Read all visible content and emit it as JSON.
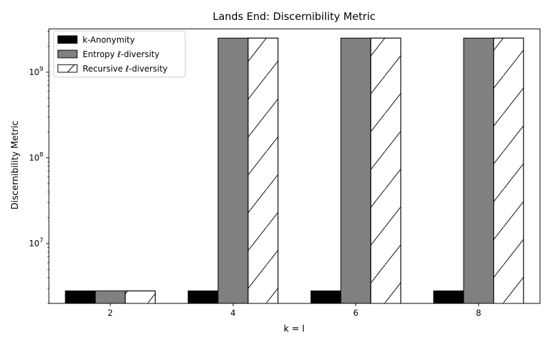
{
  "chart_data": {
    "type": "bar",
    "title": "Lands End: Discernibility Metric",
    "xlabel": "k = l",
    "ylabel": "Discernibility Metric",
    "yscale": "log",
    "ylim": [
      2000000,
      3200000000
    ],
    "categories": [
      "2",
      "4",
      "6",
      "8"
    ],
    "y_major_ticks": [
      {
        "value": 10000000,
        "label_base": "10",
        "label_exp": "7"
      },
      {
        "value": 100000000,
        "label_base": "10",
        "label_exp": "8"
      },
      {
        "value": 1000000000,
        "label_base": "10",
        "label_exp": "9"
      }
    ],
    "legend_position": "top-left",
    "grid": false,
    "series": [
      {
        "name": "k-Anonymity",
        "values": [
          2800000,
          2800000,
          2800000,
          2800000
        ],
        "color": "#000000",
        "hatch": "none"
      },
      {
        "name": "Entropy ℓ-diversity",
        "values": [
          2800000,
          2500000000,
          2500000000,
          2500000000
        ],
        "color": "#808080",
        "hatch": "none"
      },
      {
        "name": "Recursive ℓ-diversity",
        "values": [
          2800000,
          2500000000,
          2500000000,
          2500000000
        ],
        "color": "#ffffff",
        "hatch": "diagonal"
      }
    ]
  }
}
